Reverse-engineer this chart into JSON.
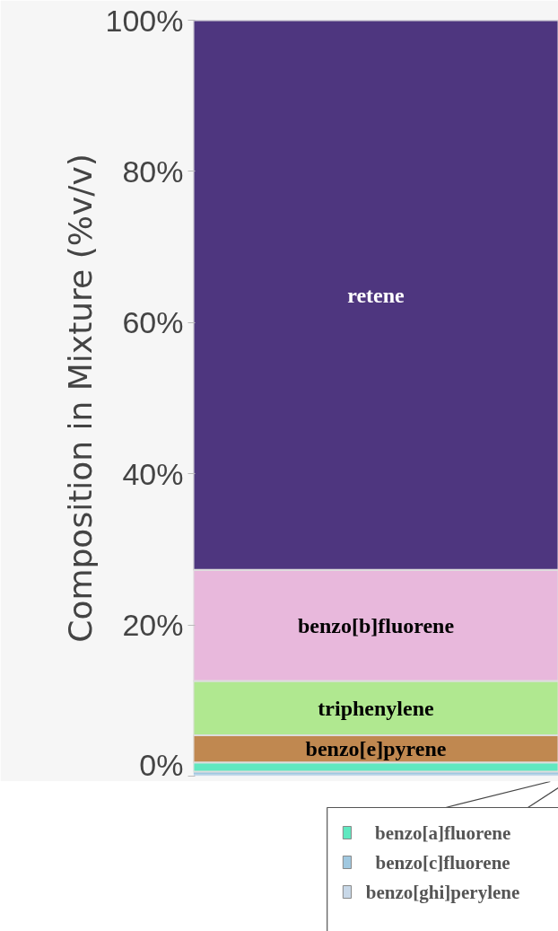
{
  "chart_data": {
    "type": "bar",
    "stacked": true,
    "categories": [
      null
    ],
    "ylabel": "Composition in Mixture (%v/v)",
    "legend": "bottom right",
    "ylim": [
      0,
      100
    ],
    "yticks": [
      {
        "value": 0,
        "label": "0%"
      },
      {
        "value": 20,
        "label": "20%"
      },
      {
        "value": 40,
        "label": "40%"
      },
      {
        "value": 60,
        "label": "60%"
      },
      {
        "value": 80,
        "label": "80%"
      },
      {
        "value": 100,
        "label": "100%"
      }
    ],
    "series": [
      {
        "name": "benzo[ghi]perylene",
        "color": "#c8d8e8",
        "values": [
          0.2
        ]
      },
      {
        "name": "benzo[c]fluorene",
        "color": "#a0c8e0",
        "values": [
          0.4
        ]
      },
      {
        "name": "benzo[a]fluorene",
        "color": "#60e8c0",
        "values": [
          1.2
        ]
      },
      {
        "name": "benzo[e]pyrene",
        "color": "#c08850",
        "values": [
          3.6
        ]
      },
      {
        "name": "triphenylene",
        "color": "#b0e890",
        "values": [
          7.2
        ]
      },
      {
        "name": "benzo[b]fluorene",
        "color": "#e8b8dc",
        "values": [
          14.7
        ]
      },
      {
        "name": "retene",
        "color": "#4e367f",
        "values": [
          72.7
        ]
      }
    ]
  }
}
